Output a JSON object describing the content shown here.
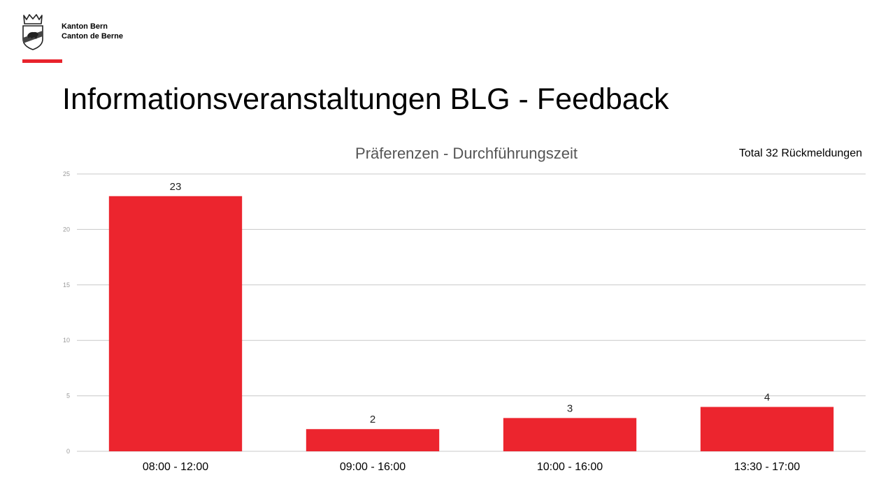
{
  "org": {
    "line1": "Kanton Bern",
    "line2": "Canton de Berne"
  },
  "page_title": "Informationsveranstaltungen BLG - Feedback",
  "note": "Total 32 Rückmeldungen",
  "colors": {
    "accent": "#e8232c",
    "bar": "#ec252e",
    "grid": "#c8c8c8",
    "axis_text": "#9a9a9a"
  },
  "logo": {
    "icon": "bern-bear-coat-of-arms-icon"
  },
  "chart_data": {
    "type": "bar",
    "title": "Präferenzen - Durchführungszeit",
    "xlabel": "",
    "ylabel": "",
    "categories": [
      "08:00 - 12:00",
      "09:00 - 16:00",
      "10:00 - 16:00",
      "13:30 - 17:00"
    ],
    "values": [
      23,
      2,
      3,
      4
    ],
    "data_labels": [
      "23",
      "2",
      "3",
      "4"
    ],
    "ylim": [
      0,
      25
    ],
    "yticks": [
      0,
      5,
      10,
      15,
      20,
      25
    ],
    "grid": true,
    "legend": "none"
  }
}
